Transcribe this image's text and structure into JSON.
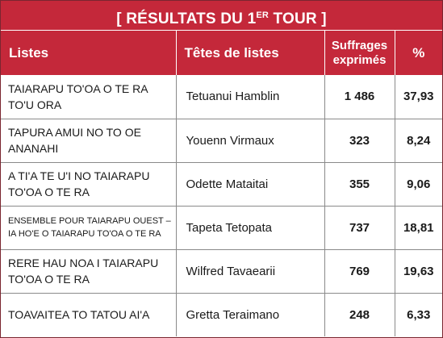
{
  "title": {
    "prefix": "[ RÉSULTATS DU 1",
    "sup": "ER",
    "suffix": " TOUR ]"
  },
  "columns": {
    "listes": "Listes",
    "tetes": "Têtes de listes",
    "suffrages_line1": "Suffrages",
    "suffrages_line2": "exprimés",
    "pct": "%"
  },
  "rows": [
    {
      "liste": [
        "TAIARAPU TO'OA O TE RA",
        "TO'U ORA"
      ],
      "tete": "Tetuanui Hamblin",
      "suffrages": "1 486",
      "pct": "37,93"
    },
    {
      "liste": [
        "TAPURA AMUI NO TO OE",
        "ANANAHI"
      ],
      "tete": "Youenn Virmaux",
      "suffrages": "323",
      "pct": "8,24"
    },
    {
      "liste": [
        "A TI'A TE U'I NO TAIARAPU",
        "TO'OA O TE RA"
      ],
      "tete": "Odette Mataitai",
      "suffrages": "355",
      "pct": "9,06"
    },
    {
      "liste": [
        "ENSEMBLE POUR TAIARAPU OUEST –",
        "IA HO'E O TAIARAPU TO'OA O TE RA"
      ],
      "tete": "Tapeta Tetopata",
      "suffrages": "737",
      "pct": "18,81"
    },
    {
      "liste": [
        "RERE HAU NOA I TAIARAPU",
        "TO'OA O TE RA"
      ],
      "tete": "Wilfred Tavaearii",
      "suffrages": "769",
      "pct": "19,63"
    },
    {
      "liste": [
        "TOAVAITEA TO TATOU AI'A",
        ""
      ],
      "tete": "Gretta Teraimano",
      "suffrages": "248",
      "pct": "6,33"
    }
  ]
}
